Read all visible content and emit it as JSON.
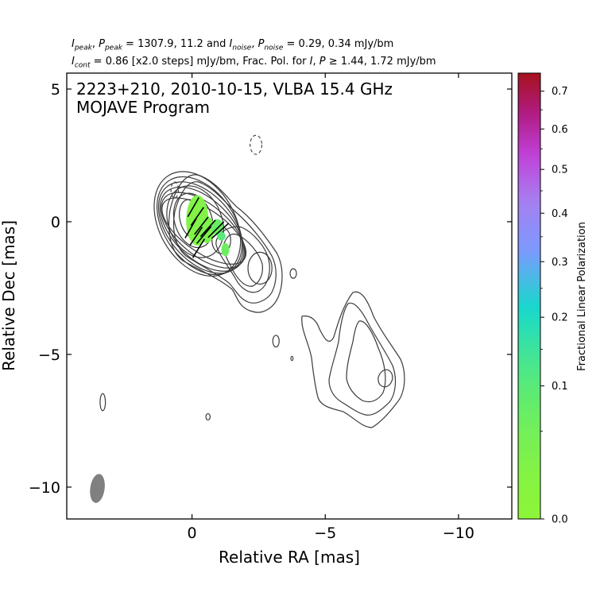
{
  "header": {
    "line1": {
      "ipeak_sym": "I",
      "ipeak_sub": "peak",
      "ppeak_sym": "P",
      "ppeak_sub": "peak",
      "peak_values": "1307.9, 11.2",
      "and_word": "and",
      "inoise_sym": "I",
      "inoise_sub": "noise",
      "pnoise_sym": "P",
      "pnoise_sub": "noise",
      "noise_values": "0.29, 0.34 mJy/bm"
    },
    "line2": {
      "icont_sym": "I",
      "icont_sub": "cont",
      "icont_text": "= 0.86 [x2.0 steps] mJy/bm, Frac. Pol. for",
      "i_sym": "I",
      "p_sym": "P",
      "threshold_text": "1.44, 1.72 mJy/bm"
    }
  },
  "chart_data": {
    "type": "contour",
    "title": "2223+210, 2010-10-15, VLBA 15.4 GHz",
    "subtitle": "MOJAVE Program",
    "xlabel": "Relative RA [mas]",
    "ylabel": "Relative Dec [mas]",
    "xlim": [
      4.7,
      -12.0
    ],
    "ylim": [
      -11.2,
      5.6
    ],
    "x_ticks": [
      0,
      -5,
      -10
    ],
    "x_tick_labels": [
      "0",
      "−5",
      "−10"
    ],
    "y_ticks": [
      5,
      0,
      -5,
      -10
    ],
    "y_tick_labels": [
      "5",
      "0",
      "−5",
      "−10"
    ],
    "contours": {
      "color": "#3a3a3a",
      "core_levels": [
        {
          "x": -0.45,
          "y": -0.35,
          "rx": 0.8,
          "ry": 1.85,
          "angle": -55
        },
        {
          "x": -0.42,
          "y": -0.32,
          "rx": 0.95,
          "ry": 1.9,
          "angle": -50
        },
        {
          "x": -0.38,
          "y": -0.28,
          "rx": 1.1,
          "ry": 1.95,
          "angle": -45
        },
        {
          "x": -0.33,
          "y": -0.22,
          "rx": 1.22,
          "ry": 2.0,
          "angle": -40
        },
        {
          "x": -0.28,
          "y": -0.15,
          "rx": 1.32,
          "ry": 2.05,
          "angle": -35
        },
        {
          "x": -0.2,
          "y": -0.08,
          "rx": 1.42,
          "ry": 2.12,
          "angle": -30
        },
        {
          "x": -0.12,
          "y": 0.0,
          "rx": 1.0,
          "ry": 1.4,
          "angle": -22
        },
        {
          "x": -0.05,
          "y": 0.05,
          "rx": 0.7,
          "ry": 1.05,
          "angle": -18
        },
        {
          "x": 0.0,
          "y": 0.1,
          "rx": 0.45,
          "ry": 0.75,
          "angle": -15
        }
      ],
      "inner_knot": {
        "x": -1.1,
        "y": -0.7,
        "rx": 0.35,
        "ry": 0.5
      },
      "inner_hole": {
        "x": -2.55,
        "y": -1.75,
        "rx": 0.45,
        "ry": 0.6
      },
      "extended_jet_levels": 3,
      "negative_levels": [
        {
          "x": -2.4,
          "y": 2.9,
          "rx": 0.22,
          "ry": 0.36
        },
        {
          "x": 0.65,
          "y": 1.2,
          "rx": 0.14,
          "ry": 0.3
        }
      ],
      "small_islands": [
        {
          "x": -3.8,
          "y": -1.95,
          "rx": 0.12,
          "ry": 0.18
        },
        {
          "x": -3.15,
          "y": -4.5,
          "rx": 0.12,
          "ry": 0.22
        },
        {
          "x": -3.75,
          "y": -5.15,
          "rx": 0.04,
          "ry": 0.08
        },
        {
          "x": 3.35,
          "y": -6.8,
          "rx": 0.1,
          "ry": 0.32
        },
        {
          "x": -0.6,
          "y": -7.35,
          "rx": 0.08,
          "ry": 0.12
        }
      ]
    },
    "polarization": {
      "colorbar_label": "Fractional Linear Polarization",
      "colorbar_range": [
        0.0,
        0.75
      ],
      "colorbar_ticks": [
        0.0,
        0.1,
        0.2,
        0.3,
        0.4,
        0.5,
        0.6,
        0.7
      ],
      "colorbar_tick_labels": [
        "0.0",
        "0.1",
        "0.2",
        "0.3",
        "0.4",
        "0.5",
        "0.6",
        "0.7"
      ],
      "colorbar_minor_ticks": [
        0.05,
        0.15,
        0.25,
        0.35,
        0.45,
        0.55,
        0.65
      ],
      "colormap": [
        "#8cf53a",
        "#55e97e",
        "#18d9cc",
        "#7c99ff",
        "#a87ef0",
        "#c040d8",
        "#b01a80",
        "#a6121c"
      ],
      "patches": [
        {
          "x": -0.2,
          "y": 0.05,
          "rx": 0.42,
          "ry": 0.95,
          "frac": 0.02
        },
        {
          "x": -0.55,
          "y": -0.3,
          "rx": 0.3,
          "ry": 0.5,
          "frac": 0.03
        },
        {
          "x": -0.95,
          "y": -0.2,
          "rx": 0.22,
          "ry": 0.3,
          "frac": 0.07
        },
        {
          "x": -1.1,
          "y": -0.55,
          "rx": 0.16,
          "ry": 0.16,
          "frac": 0.1
        },
        {
          "x": -1.25,
          "y": -1.05,
          "rx": 0.15,
          "ry": 0.25,
          "frac": 0.06
        }
      ],
      "evpa_vectors": [
        {
          "x": -0.05,
          "y": 0.55,
          "angle": 30
        },
        {
          "x": -0.2,
          "y": 0.2,
          "angle": 35
        },
        {
          "x": -0.35,
          "y": -0.15,
          "angle": 38
        },
        {
          "x": 0.05,
          "y": -0.25,
          "angle": 30
        },
        {
          "x": -0.15,
          "y": -0.55,
          "angle": 34
        },
        {
          "x": -0.45,
          "y": -0.5,
          "angle": 40
        },
        {
          "x": -0.6,
          "y": -0.25,
          "angle": 42
        },
        {
          "x": -0.25,
          "y": -1.0,
          "angle": 32
        },
        {
          "x": -0.9,
          "y": -0.3,
          "angle": 45
        },
        {
          "x": -1.05,
          "y": -0.35,
          "angle": 48
        }
      ]
    },
    "beam": {
      "x": 3.55,
      "y": -10.05,
      "rx": 0.27,
      "ry": 0.55,
      "angle": 8,
      "color": "#808080"
    }
  }
}
